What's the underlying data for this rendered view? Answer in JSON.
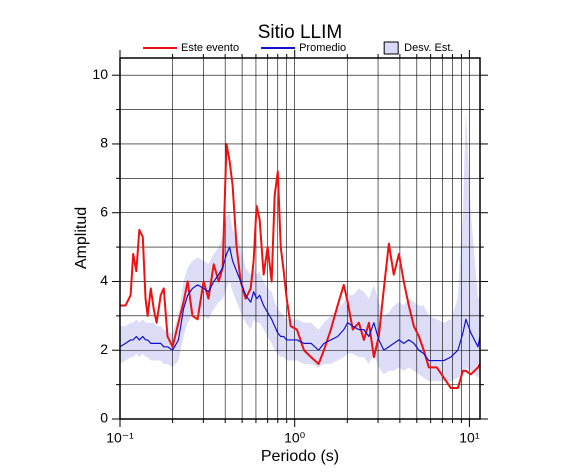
{
  "chart_data": {
    "type": "line",
    "title": "Sitio LLIM",
    "xlabel": "Periodo (s)",
    "ylabel": "Amplitud",
    "xscale": "log",
    "grid": true,
    "legend": "top",
    "xlim": [
      0.1,
      11.5
    ],
    "ylim": [
      0,
      10.5
    ],
    "xticks": [
      {
        "value": 0.1,
        "label": "10⁻¹"
      },
      {
        "value": 1,
        "label": "10⁰"
      },
      {
        "value": 10,
        "label": "10¹"
      }
    ],
    "xminorticks": [
      0.2,
      0.3,
      0.4,
      0.5,
      0.6,
      0.7,
      0.8,
      0.9,
      2,
      3,
      4,
      5,
      6,
      7,
      8,
      9
    ],
    "yticks": [
      0,
      2,
      4,
      6,
      8,
      10
    ],
    "yminorticks": [
      1,
      3,
      5,
      7,
      9
    ],
    "x": [
      0.1,
      0.1075,
      0.115,
      0.119,
      0.124,
      0.129,
      0.135,
      0.14,
      0.144,
      0.15,
      0.156,
      0.162,
      0.171,
      0.178,
      0.187,
      0.2,
      0.216,
      0.231,
      0.244,
      0.26,
      0.278,
      0.301,
      0.321,
      0.344,
      0.367,
      0.387,
      0.407,
      0.424,
      0.441,
      0.465,
      0.491,
      0.524,
      0.56,
      0.582,
      0.605,
      0.63,
      0.664,
      0.7,
      0.738,
      0.768,
      0.8,
      0.832,
      0.865,
      0.9,
      0.949,
      1.03,
      1.13,
      1.24,
      1.37,
      1.47,
      1.61,
      1.76,
      1.91,
      2.01,
      2.15,
      2.33,
      2.49,
      2.66,
      2.84,
      3.03,
      3.24,
      3.46,
      3.69,
      3.95,
      4.21,
      4.5,
      4.81,
      5.14,
      5.48,
      5.86,
      6.51,
      7.14,
      7.83,
      8.59,
      9.18,
      9.55,
      10.2,
      11.2,
      11.5
    ],
    "band": {
      "name": "Desv. Est.",
      "color": "#d9d9f7",
      "edge": "#000000",
      "upper": [
        2.7,
        2.7,
        2.8,
        2.8,
        2.9,
        2.8,
        2.9,
        2.8,
        2.8,
        2.8,
        2.8,
        2.7,
        2.7,
        2.6,
        2.5,
        2.5,
        3.0,
        4.0,
        4.4,
        4.6,
        4.7,
        4.6,
        4.5,
        4.8,
        5.0,
        5.3,
        5.9,
        6.0,
        5.5,
        5.3,
        5.0,
        4.4,
        4.2,
        4.4,
        4.2,
        4.3,
        4.0,
        3.8,
        3.7,
        3.4,
        3.2,
        3.1,
        3.0,
        2.9,
        2.9,
        2.9,
        2.8,
        2.8,
        2.6,
        2.8,
        3.0,
        3.2,
        3.4,
        3.6,
        3.6,
        3.8,
        3.7,
        3.5,
        3.9,
        3.4,
        3.0,
        3.1,
        3.3,
        3.4,
        3.3,
        3.5,
        3.4,
        3.3,
        3.3,
        3.0,
        2.9,
        2.8,
        2.9,
        3.5,
        6.0,
        9.0,
        6.0,
        3.5,
        3.6
      ],
      "lower": [
        1.6,
        1.7,
        1.8,
        1.8,
        1.9,
        1.8,
        1.9,
        1.8,
        1.8,
        1.7,
        1.7,
        1.7,
        1.7,
        1.6,
        1.6,
        1.5,
        1.7,
        2.4,
        2.8,
        3.0,
        3.1,
        3.0,
        2.9,
        3.2,
        3.4,
        3.5,
        3.8,
        4.0,
        3.7,
        3.4,
        3.1,
        2.8,
        2.6,
        2.9,
        2.8,
        2.8,
        2.6,
        2.4,
        2.2,
        2.0,
        1.9,
        1.8,
        1.8,
        1.7,
        1.7,
        1.7,
        1.6,
        1.6,
        1.5,
        1.6,
        1.6,
        1.7,
        1.8,
        1.9,
        1.9,
        1.8,
        1.8,
        1.6,
        1.9,
        1.5,
        1.3,
        1.4,
        1.4,
        1.5,
        1.4,
        1.5,
        1.4,
        1.3,
        1.2,
        1.1,
        1.1,
        1.1,
        1.1,
        1.2,
        1.3,
        1.5,
        1.4,
        1.2,
        1.4
      ]
    },
    "series": [
      {
        "name": "Este evento",
        "color": "#ee1111",
        "width": 2,
        "values": [
          3.3,
          3.3,
          3.6,
          4.8,
          4.3,
          5.5,
          5.3,
          3.5,
          3.0,
          3.8,
          3.2,
          2.8,
          3.6,
          3.8,
          2.4,
          2.1,
          2.8,
          3.4,
          4.0,
          3.0,
          2.9,
          4.0,
          3.5,
          4.5,
          4.0,
          4.4,
          8.0,
          7.5,
          6.8,
          5.0,
          4.0,
          3.5,
          3.8,
          4.6,
          6.2,
          5.8,
          4.2,
          5.0,
          4.0,
          6.5,
          7.2,
          5.0,
          4.3,
          3.5,
          2.7,
          2.6,
          2.0,
          1.8,
          1.6,
          2.0,
          2.6,
          3.3,
          3.9,
          3.4,
          2.6,
          2.8,
          2.3,
          2.8,
          1.8,
          2.4,
          3.8,
          5.1,
          4.2,
          4.8,
          4.0,
          3.3,
          2.7,
          2.4,
          2.0,
          1.5,
          1.5,
          1.2,
          0.9,
          0.9,
          1.4,
          1.4,
          1.3,
          1.5,
          1.6
        ]
      },
      {
        "name": "Promedio",
        "color": "#1111cc",
        "width": 1.2,
        "values": [
          2.1,
          2.2,
          2.3,
          2.3,
          2.4,
          2.3,
          2.4,
          2.3,
          2.3,
          2.2,
          2.2,
          2.2,
          2.2,
          2.1,
          2.1,
          2.0,
          2.3,
          3.2,
          3.6,
          3.8,
          3.9,
          3.8,
          3.7,
          4.0,
          4.2,
          4.4,
          4.8,
          5.0,
          4.6,
          4.3,
          4.0,
          3.6,
          3.4,
          3.7,
          3.5,
          3.6,
          3.3,
          3.1,
          2.9,
          2.7,
          2.5,
          2.4,
          2.4,
          2.3,
          2.3,
          2.3,
          2.2,
          2.2,
          2.0,
          2.2,
          2.3,
          2.4,
          2.6,
          2.8,
          2.7,
          2.6,
          2.6,
          2.4,
          2.8,
          2.3,
          2.0,
          2.1,
          2.2,
          2.3,
          2.2,
          2.3,
          2.2,
          2.0,
          1.9,
          1.7,
          1.7,
          1.7,
          1.8,
          2.0,
          2.5,
          2.9,
          2.5,
          2.1,
          2.4
        ]
      }
    ]
  }
}
